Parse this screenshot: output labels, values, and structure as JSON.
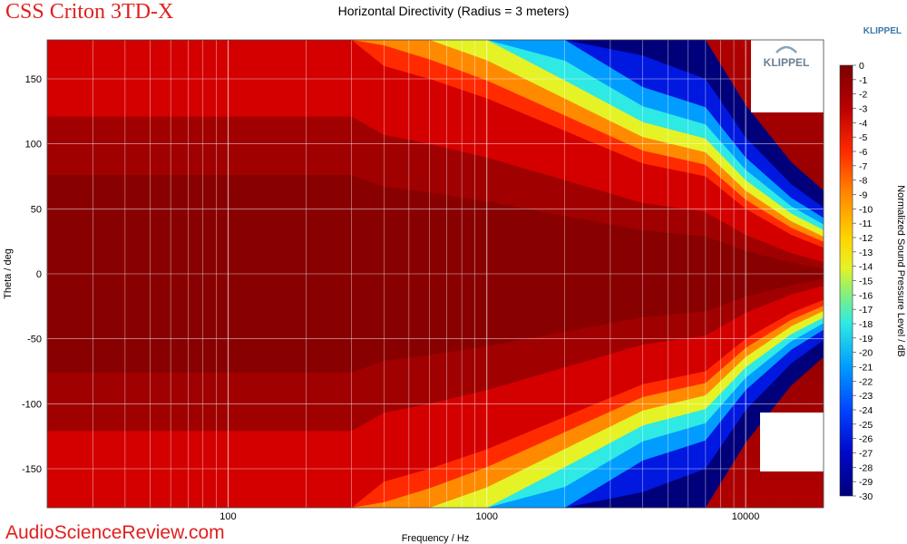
{
  "header": {
    "brand_title": "CSS Criton 3TD-X",
    "watermark": "AudioScienceReview.com",
    "vendor_label": "KLIPPEL",
    "logo_text": "KLIPPEL"
  },
  "colors": {
    "brand_red": "#e0201e",
    "vendor_blue": "#3a78a8"
  },
  "chart_data": {
    "type": "heatmap",
    "title": "Horizontal Directivity (Radius = 3 meters)",
    "xlabel": "Frequency / Hz",
    "ylabel": "Theta / deg",
    "x_scale": "log",
    "xlim": [
      20,
      20000
    ],
    "ylim": [
      -180,
      180
    ],
    "x_tick_labels": [
      {
        "value": 100,
        "label": "100"
      },
      {
        "value": 1000,
        "label": "1000"
      },
      {
        "value": 10000,
        "label": "10000"
      }
    ],
    "y_tick_labels": [
      {
        "value": 150,
        "label": "150"
      },
      {
        "value": 100,
        "label": "100"
      },
      {
        "value": 50,
        "label": "50"
      },
      {
        "value": 0,
        "label": "0"
      },
      {
        "value": -50,
        "label": "-50"
      },
      {
        "value": -100,
        "label": "-100"
      },
      {
        "value": -150,
        "label": "-150"
      }
    ],
    "grid": true,
    "colorbar": {
      "label": "Normalized Sound Pressure Level / dB",
      "range": [
        -30,
        0
      ],
      "ticks": [
        "0",
        "-1",
        "-2",
        "-3",
        "-4",
        "-5",
        "-6",
        "-7",
        "-8",
        "-9",
        "-10",
        "-11",
        "-12",
        "-13",
        "-14",
        "-15",
        "-16",
        "-17",
        "-18",
        "-19",
        "-20",
        "-21",
        "-22",
        "-23",
        "-24",
        "-25",
        "-26",
        "-27",
        "-28",
        "-29",
        "-30"
      ],
      "placement": "right"
    },
    "beamwidth_minus6dB_deg": [
      {
        "freq": 20,
        "theta": 180
      },
      {
        "freq": 300,
        "theta": 180
      },
      {
        "freq": 400,
        "theta": 160
      },
      {
        "freq": 600,
        "theta": 150
      },
      {
        "freq": 1000,
        "theta": 135
      },
      {
        "freq": 2000,
        "theta": 110
      },
      {
        "freq": 4000,
        "theta": 85
      },
      {
        "freq": 7000,
        "theta": 75
      },
      {
        "freq": 10000,
        "theta": 50
      },
      {
        "freq": 15000,
        "theta": 30
      },
      {
        "freq": 20000,
        "theta": 20
      }
    ]
  }
}
